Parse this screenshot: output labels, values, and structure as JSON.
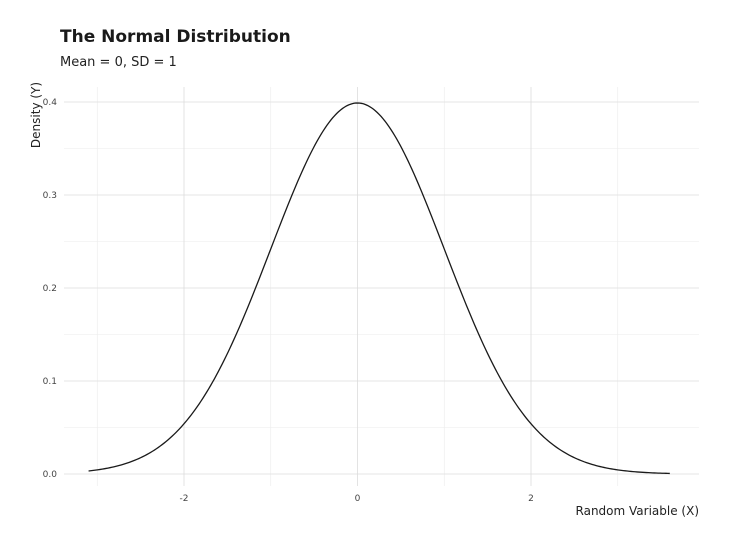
{
  "chart_data": {
    "type": "line",
    "title": "The Normal Distribution",
    "subtitle": "Mean = 0, SD = 1",
    "xlabel": "Random Variable (X)",
    "ylabel": "Density (Y)",
    "xlim": [
      -3.05,
      3.6
    ],
    "ylim": [
      0,
      0.4
    ],
    "grid": true,
    "x_ticks": [
      {
        "value": -2,
        "label": "-2"
      },
      {
        "value": 0,
        "label": "0"
      },
      {
        "value": 2,
        "label": "2"
      }
    ],
    "y_ticks": [
      {
        "value": 0,
        "label": "0.0"
      },
      {
        "value": 0.1,
        "label": "0.1"
      },
      {
        "value": 0.2,
        "label": "0.2"
      },
      {
        "value": 0.3,
        "label": "0.3"
      },
      {
        "value": 0.4,
        "label": "0.4"
      }
    ],
    "series": [
      {
        "mean": 0,
        "sd": 1,
        "x_range": [
          -3.1,
          3.6
        ],
        "color": "#1a1a1a"
      }
    ]
  }
}
